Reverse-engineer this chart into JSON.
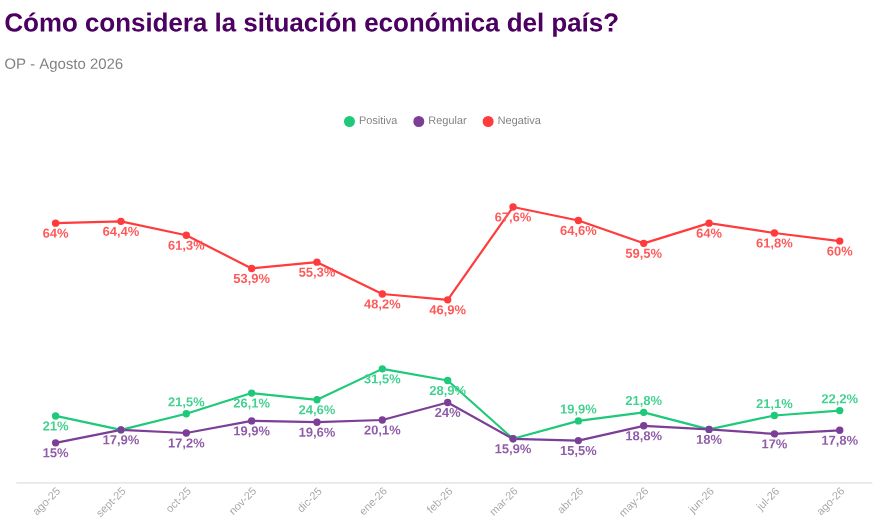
{
  "chart_data": {
    "type": "line",
    "title": "Cómo considera la situación económica del país?",
    "subtitle": "OP - Agosto 2026",
    "categories": [
      "ago-25",
      "sept-25",
      "oct-25",
      "nov-25",
      "dic-25",
      "ene-26",
      "feb-26",
      "mar-26",
      "abr-26",
      "may-26",
      "jun-26",
      "jul-26",
      "ago-26"
    ],
    "series": [
      {
        "name": "Positiva",
        "color": "#1fc97a",
        "values": [
          21,
          17.9,
          21.5,
          26.1,
          24.6,
          31.5,
          28.9,
          15.9,
          19.9,
          21.8,
          18,
          21.1,
          22.2
        ],
        "value_labels": [
          "21%",
          null,
          "21,5%",
          "26,1%",
          "24,6%",
          "31,5%",
          "28,9%",
          null,
          "19,9%",
          "21,8%",
          null,
          "21,1%",
          "22,2%"
        ]
      },
      {
        "name": "Regular",
        "color": "#7b3f98",
        "values": [
          15,
          17.9,
          17.2,
          19.9,
          19.6,
          20.1,
          24,
          15.9,
          15.5,
          18.8,
          18,
          17,
          17.8
        ],
        "value_labels": [
          "15%",
          "17,9%",
          "17,2%",
          "19,9%",
          "19,6%",
          "20,1%",
          "24%",
          "15,9%",
          "15,5%",
          "18,8%",
          "18%",
          "17%",
          "17,8%"
        ]
      },
      {
        "name": "Negativa",
        "color": "#ff3b3b",
        "values": [
          64,
          64.4,
          61.3,
          53.9,
          55.3,
          48.2,
          46.9,
          67.6,
          64.6,
          59.5,
          64,
          61.8,
          60
        ],
        "value_labels": [
          "64%",
          "64,4%",
          "61,3%",
          "53,9%",
          "55,3%",
          "48,2%",
          "46,9%",
          "67,6%",
          "64,6%",
          "59,5%",
          "64%",
          "61,8%",
          "60%"
        ]
      }
    ],
    "tick_labels": "x",
    "legend": "top",
    "marker": "circle",
    "line_style": "solid",
    "grid": false
  }
}
